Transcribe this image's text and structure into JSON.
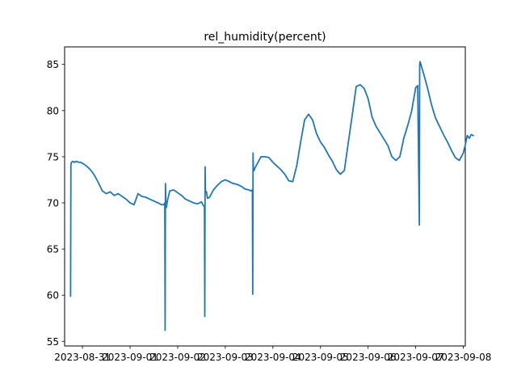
{
  "chart_data": {
    "type": "line",
    "title": "rel_humidity(percent)",
    "xlabel": "",
    "ylabel": "",
    "x_ticks": [
      "2023-08-31",
      "2023-09-01",
      "2023-09-02",
      "2023-09-03",
      "2023-09-04",
      "2023-09-05",
      "2023-09-06",
      "2023-09-07",
      "2023-09-08"
    ],
    "y_ticks": [
      55,
      60,
      65,
      70,
      75,
      80,
      85
    ],
    "xlim": [
      "2023-08-30 15:00",
      "2023-09-08 01:00"
    ],
    "ylim": [
      54.5,
      86.9
    ],
    "grid": false,
    "line_color": "#1f77b4",
    "series": [
      {
        "x": [
          "2023-08-30 18:00",
          "2023-08-30 18:10",
          "2023-08-30 18:20",
          "2023-08-30 18:30",
          "2023-08-30 19:00",
          "2023-08-30 20:00",
          "2023-08-30 21:00",
          "2023-08-30 22:00",
          "2023-08-30 23:00",
          "2023-08-31 00:00",
          "2023-08-31 02:00",
          "2023-08-31 04:00",
          "2023-08-31 06:00",
          "2023-08-31 08:00",
          "2023-08-31 10:00",
          "2023-08-31 12:00",
          "2023-08-31 14:00",
          "2023-08-31 16:00",
          "2023-08-31 18:00",
          "2023-08-31 20:00",
          "2023-08-31 22:00",
          "2023-09-01 00:00",
          "2023-09-01 02:00",
          "2023-09-01 04:00",
          "2023-09-01 06:00",
          "2023-09-01 08:00",
          "2023-09-01 10:00",
          "2023-09-01 12:00",
          "2023-09-01 14:00",
          "2023-09-01 16:00",
          "2023-09-01 17:00",
          "2023-09-01 17:30",
          "2023-09-01 17:40",
          "2023-09-01 17:50",
          "2023-09-01 18:00",
          "2023-09-01 18:10",
          "2023-09-01 18:20",
          "2023-09-01 18:30",
          "2023-09-01 19:00",
          "2023-09-01 20:00",
          "2023-09-01 22:00",
          "2023-09-02 00:00",
          "2023-09-02 02:00",
          "2023-09-02 04:00",
          "2023-09-02 06:00",
          "2023-09-02 08:00",
          "2023-09-02 10:00",
          "2023-09-02 12:00",
          "2023-09-02 13:00",
          "2023-09-02 13:30",
          "2023-09-02 13:40",
          "2023-09-02 13:50",
          "2023-09-02 14:00",
          "2023-09-02 14:30",
          "2023-09-02 15:00",
          "2023-09-02 16:00",
          "2023-09-02 18:00",
          "2023-09-02 20:00",
          "2023-09-02 22:00",
          "2023-09-03 00:00",
          "2023-09-03 02:00",
          "2023-09-03 04:00",
          "2023-09-03 06:00",
          "2023-09-03 08:00",
          "2023-09-03 10:00",
          "2023-09-03 12:00",
          "2023-09-03 13:00",
          "2023-09-03 13:40",
          "2023-09-03 13:50",
          "2023-09-03 14:00",
          "2023-09-03 14:10",
          "2023-09-03 14:30",
          "2023-09-03 15:00",
          "2023-09-03 16:00",
          "2023-09-03 18:00",
          "2023-09-03 20:00",
          "2023-09-03 22:00",
          "2023-09-04 00:00",
          "2023-09-04 02:00",
          "2023-09-04 04:00",
          "2023-09-04 06:00",
          "2023-09-04 08:00",
          "2023-09-04 10:00",
          "2023-09-04 12:00",
          "2023-09-04 14:00",
          "2023-09-04 16:00",
          "2023-09-04 18:00",
          "2023-09-04 20:00",
          "2023-09-04 22:00",
          "2023-09-05 00:00",
          "2023-09-05 02:00",
          "2023-09-05 04:00",
          "2023-09-05 06:00",
          "2023-09-05 08:00",
          "2023-09-05 10:00",
          "2023-09-05 12:00",
          "2023-09-05 14:00",
          "2023-09-05 16:00",
          "2023-09-05 18:00",
          "2023-09-05 20:00",
          "2023-09-05 22:00",
          "2023-09-06 00:00",
          "2023-09-06 02:00",
          "2023-09-06 04:00",
          "2023-09-06 06:00",
          "2023-09-06 08:00",
          "2023-09-06 10:00",
          "2023-09-06 12:00",
          "2023-09-06 14:00",
          "2023-09-06 16:00",
          "2023-09-06 18:00",
          "2023-09-06 20:00",
          "2023-09-06 22:00",
          "2023-09-07 00:00",
          "2023-09-07 01:00",
          "2023-09-07 01:50",
          "2023-09-07 02:00",
          "2023-09-07 02:10",
          "2023-09-07 02:30",
          "2023-09-07 03:00",
          "2023-09-07 04:00",
          "2023-09-07 06:00",
          "2023-09-07 08:00",
          "2023-09-07 10:00",
          "2023-09-07 12:00",
          "2023-09-07 14:00",
          "2023-09-07 16:00",
          "2023-09-07 18:00",
          "2023-09-07 20:00",
          "2023-09-07 22:00",
          "2023-09-08 00:00",
          "2023-09-08 01:00",
          "2023-09-08 02:00",
          "2023-09-08 03:00",
          "2023-09-08 04:00",
          "2023-09-08 05:00"
        ],
        "y": [
          59.9,
          74.1,
          74.3,
          74.4,
          74.5,
          74.4,
          74.5,
          74.4,
          74.4,
          74.3,
          74.0,
          73.6,
          73.0,
          72.2,
          71.3,
          71.0,
          71.2,
          70.8,
          71.0,
          70.7,
          70.4,
          70.0,
          69.8,
          71.0,
          70.7,
          70.6,
          70.4,
          70.2,
          70.0,
          69.8,
          69.8,
          70.0,
          56.2,
          72.1,
          70.4,
          69.6,
          69.5,
          69.8,
          70.4,
          71.3,
          71.4,
          71.1,
          70.8,
          70.4,
          70.2,
          70.0,
          69.9,
          70.1,
          69.7,
          69.6,
          57.7,
          73.9,
          71.3,
          71.2,
          70.5,
          70.6,
          71.4,
          71.9,
          72.3,
          72.5,
          72.3,
          72.1,
          72.0,
          71.8,
          71.5,
          71.4,
          71.3,
          71.4,
          60.1,
          75.4,
          73.6,
          73.5,
          73.8,
          74.2,
          75.0,
          75.0,
          74.9,
          74.4,
          74.0,
          73.6,
          73.1,
          72.4,
          72.3,
          74.0,
          76.6,
          79.0,
          79.6,
          79.0,
          77.5,
          76.6,
          76.0,
          75.2,
          74.5,
          73.6,
          73.1,
          73.5,
          76.5,
          79.5,
          82.6,
          82.8,
          82.4,
          81.3,
          79.3,
          78.3,
          77.6,
          76.9,
          76.2,
          75.0,
          74.6,
          75.0,
          77.0,
          78.4,
          80.0,
          82.5,
          82.7,
          67.6,
          84.8,
          85.3,
          85.1,
          84.7,
          84.0,
          82.4,
          80.6,
          79.2,
          78.3,
          77.4,
          76.6,
          75.7,
          74.9,
          74.6,
          75.4,
          76.3,
          77.3,
          77.0,
          77.4,
          77.3
        ]
      }
    ]
  }
}
